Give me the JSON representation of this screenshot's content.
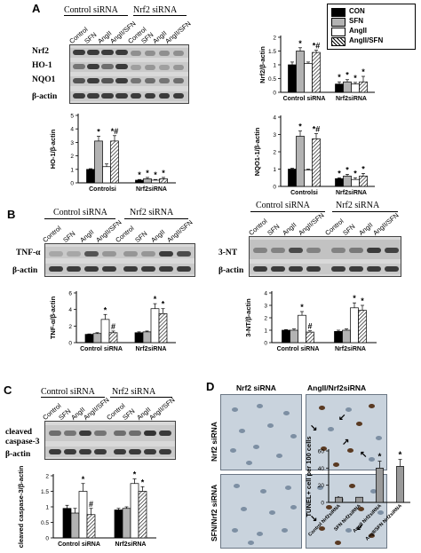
{
  "panels": {
    "A": {
      "letter": "A",
      "groups": [
        "Control siRNA",
        "Nrf2 siRNA"
      ],
      "lanes": [
        "Control",
        "SFN",
        "AngII",
        "AngII/SFN",
        "Control",
        "SFN",
        "AngII",
        "AngII/SFN"
      ],
      "rows": [
        "Nrf2",
        "HO-1",
        "NQO1",
        "β-actin"
      ],
      "legend": [
        "CON",
        "SFN",
        "AngII",
        "AngII/SFN"
      ]
    },
    "B": {
      "letter": "B",
      "left": {
        "groups": [
          "Control siRNA",
          "Nrf2 siRNA"
        ],
        "lanes": [
          "Control",
          "SFN",
          "AngII",
          "AngII/SFN",
          "Control",
          "SFN",
          "AngII",
          "AngII/SFN"
        ],
        "rows": [
          "TNF-α",
          "β-actin"
        ]
      },
      "right": {
        "groups": [
          "Control siRNA",
          "Nrf2 siRNA"
        ],
        "lanes": [
          "Control",
          "SFN",
          "AngII",
          "AngII/SFN",
          "Control",
          "SFN",
          "AngII",
          "AngII/SFN"
        ],
        "rows": [
          "3-NT",
          "β-actin"
        ]
      }
    },
    "C": {
      "letter": "C",
      "groups": [
        "Control siRNA",
        "Nrf2 siRNA"
      ],
      "lanes": [
        "Control",
        "SFN",
        "AngII",
        "AngII/SFN",
        "Control",
        "SFN",
        "AngII",
        "AngII/SFN"
      ],
      "rows": [
        "cleaved caspase-3",
        "β-actin"
      ],
      "row_lines": [
        "cleaved",
        "caspase-3",
        "β-actin"
      ]
    },
    "D": {
      "letter": "D",
      "col_titles": [
        "Nrf2 siRNA",
        "AngII/Nrf2siRNA"
      ],
      "row_titles": [
        "Nrf2 siRNA",
        "SFN/Nrf2 siRNA"
      ]
    }
  },
  "colors": {
    "CON": "#000000",
    "SFN": "#b3b3b3",
    "AngII": "#ffffff",
    "AngII/SFN": "hatch"
  },
  "chart_data": [
    {
      "id": "nrf2",
      "type": "bar",
      "ylabel": "Nrf2/β-actin",
      "ylim": [
        0,
        2
      ],
      "yticks": [
        0,
        0.5,
        1,
        1.5,
        2
      ],
      "categories": [
        "Control siRNA",
        "Nrf2siRNA"
      ],
      "series": [
        {
          "name": "CON",
          "values": [
            1.0,
            0.3
          ],
          "err": [
            0.1,
            0.08
          ]
        },
        {
          "name": "SFN",
          "values": [
            1.5,
            0.38
          ],
          "err": [
            0.12,
            0.08
          ]
        },
        {
          "name": "AngII",
          "values": [
            1.05,
            0.3
          ],
          "err": [
            0.05,
            0.06
          ]
        },
        {
          "name": "AngII/SFN",
          "values": [
            1.45,
            0.38
          ],
          "err": [
            0.08,
            0.2
          ]
        }
      ],
      "annotations": [
        [
          "*",
          1,
          0
        ],
        [
          "*#",
          3,
          0
        ],
        [
          "*",
          0,
          1
        ],
        [
          "*",
          1,
          1
        ],
        [
          "*",
          2,
          1
        ],
        [
          "*",
          3,
          1
        ]
      ]
    },
    {
      "id": "ho1",
      "type": "bar",
      "ylabel": "HO-1/β-actin",
      "ylim": [
        0,
        5
      ],
      "yticks": [
        0,
        1,
        2,
        3,
        4,
        5
      ],
      "categories": [
        "Controlsi",
        "Nrf2siRNA"
      ],
      "series": [
        {
          "name": "CON",
          "values": [
            1.0,
            0.2
          ],
          "err": [
            0.05,
            0.05
          ]
        },
        {
          "name": "SFN",
          "values": [
            3.1,
            0.3
          ],
          "err": [
            0.35,
            0.1
          ]
        },
        {
          "name": "AngII",
          "values": [
            1.2,
            0.2
          ],
          "err": [
            0.2,
            0.05
          ]
        },
        {
          "name": "AngII/SFN",
          "values": [
            3.1,
            0.3
          ],
          "err": [
            0.4,
            0.1
          ]
        }
      ],
      "annotations": [
        [
          "*",
          1,
          0
        ],
        [
          "*#",
          3,
          0
        ],
        [
          "*",
          0,
          1
        ],
        [
          "*",
          1,
          1
        ],
        [
          "*",
          2,
          1
        ],
        [
          "*",
          3,
          1
        ]
      ]
    },
    {
      "id": "nqo1",
      "type": "bar",
      "ylabel": "NQO1-1/β-actin",
      "ylim": [
        0,
        4
      ],
      "yticks": [
        0,
        1,
        2,
        3,
        4
      ],
      "categories": [
        "Controlsi",
        "Nrf2siRNA"
      ],
      "series": [
        {
          "name": "CON",
          "values": [
            1.0,
            0.45
          ],
          "err": [
            0.05,
            0.05
          ]
        },
        {
          "name": "SFN",
          "values": [
            2.9,
            0.6
          ],
          "err": [
            0.3,
            0.1
          ]
        },
        {
          "name": "AngII",
          "values": [
            0.95,
            0.4
          ],
          "err": [
            0.05,
            0.1
          ]
        },
        {
          "name": "AngII/SFN",
          "values": [
            2.75,
            0.6
          ],
          "err": [
            0.3,
            0.15
          ]
        }
      ],
      "annotations": [
        [
          "*",
          1,
          0
        ],
        [
          "*#",
          3,
          0
        ],
        [
          "*",
          0,
          1
        ],
        [
          "*",
          1,
          1
        ],
        [
          "*",
          2,
          1
        ],
        [
          "*",
          3,
          1
        ]
      ]
    },
    {
      "id": "tnf",
      "type": "bar",
      "ylabel": "TNF-α/β-actin",
      "ylim": [
        0,
        6
      ],
      "yticks": [
        0,
        2,
        4,
        6
      ],
      "categories": [
        "Control siRNA",
        "Nrf2siRNA"
      ],
      "series": [
        {
          "name": "CON",
          "values": [
            1.0,
            1.2
          ],
          "err": [
            0.05,
            0.1
          ]
        },
        {
          "name": "SFN",
          "values": [
            1.1,
            1.3
          ],
          "err": [
            0.1,
            0.1
          ]
        },
        {
          "name": "AngII",
          "values": [
            2.8,
            4.1
          ],
          "err": [
            0.6,
            0.6
          ]
        },
        {
          "name": "AngII/SFN",
          "values": [
            1.2,
            3.5
          ],
          "err": [
            0.2,
            0.6
          ]
        }
      ],
      "annotations": [
        [
          "*",
          2,
          0
        ],
        [
          "#",
          3,
          0
        ],
        [
          "*",
          2,
          1
        ],
        [
          "*",
          3,
          1
        ]
      ]
    },
    {
      "id": "nt3",
      "type": "bar",
      "ylabel": "3-NT/β-actin",
      "ylim": [
        0,
        4
      ],
      "yticks": [
        0,
        1,
        2,
        3,
        4
      ],
      "categories": [
        "Control siRNA",
        "Nrf2siRNA"
      ],
      "series": [
        {
          "name": "CON",
          "values": [
            1.0,
            0.9
          ],
          "err": [
            0.05,
            0.1
          ]
        },
        {
          "name": "SFN",
          "values": [
            1.0,
            1.0
          ],
          "err": [
            0.1,
            0.1
          ]
        },
        {
          "name": "AngII",
          "values": [
            2.2,
            2.8
          ],
          "err": [
            0.3,
            0.4
          ]
        },
        {
          "name": "AngII/SFN",
          "values": [
            0.85,
            2.6
          ],
          "err": [
            0.1,
            0.4
          ]
        }
      ],
      "annotations": [
        [
          "*",
          2,
          0
        ],
        [
          "#",
          3,
          0
        ],
        [
          "*",
          2,
          1
        ],
        [
          "*",
          3,
          1
        ]
      ]
    },
    {
      "id": "casp3",
      "type": "bar",
      "ylabel": "cleaved caspase-3/β-actin",
      "ylim": [
        0,
        2
      ],
      "yticks": [
        0,
        0.5,
        1,
        1.5,
        2
      ],
      "categories": [
        "Control siRNA",
        "Nrf2siRNA"
      ],
      "series": [
        {
          "name": "CON",
          "values": [
            0.95,
            0.9
          ],
          "err": [
            0.1,
            0.05
          ]
        },
        {
          "name": "SFN",
          "values": [
            0.8,
            0.95
          ],
          "err": [
            0.15,
            0.05
          ]
        },
        {
          "name": "AngII",
          "values": [
            1.5,
            1.75
          ],
          "err": [
            0.25,
            0.15
          ]
        },
        {
          "name": "AngII/SFN",
          "values": [
            0.75,
            1.5
          ],
          "err": [
            0.2,
            0.15
          ]
        }
      ],
      "annotations": [
        [
          "*",
          2,
          0
        ],
        [
          "#",
          3,
          0
        ],
        [
          "*",
          2,
          1
        ],
        [
          "*",
          3,
          1
        ]
      ]
    },
    {
      "id": "tunel",
      "type": "bar",
      "ylabel": "TUNEL+ cell per 100 cells",
      "ylim": [
        0,
        60
      ],
      "yticks": [
        0,
        20,
        40,
        60
      ],
      "categories": [
        "Control Nrf2siRNA",
        "SFN Nrf2siRNA",
        "AngII Nrf2siRNA",
        "AngII/SFN Nrf2siRNA"
      ],
      "series": [
        {
          "name": "TUNEL",
          "values": [
            6,
            6,
            40,
            42
          ],
          "err": [
            0,
            0,
            8,
            8
          ]
        }
      ],
      "annotations": [
        [
          "*",
          2
        ],
        [
          "*",
          3
        ]
      ]
    }
  ]
}
